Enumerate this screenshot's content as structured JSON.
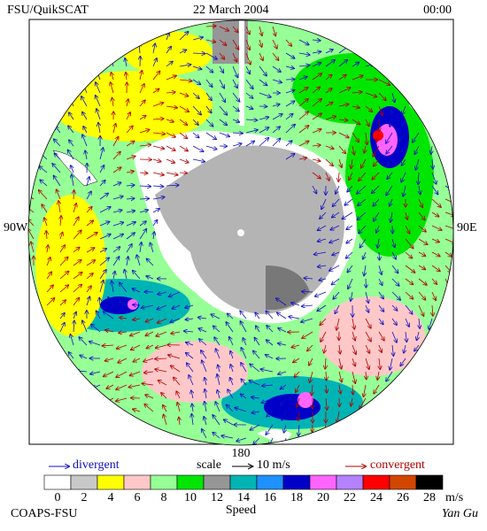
{
  "header": {
    "left": "FSU/QuikSCAT",
    "center": "22 March 2004",
    "right": "00:00"
  },
  "map": {
    "labels": {
      "left": "90W",
      "right": "90E",
      "bottom": "180"
    }
  },
  "legend": {
    "divergent": "divergent",
    "scale": "scale",
    "scale_value": "10 m/s",
    "convergent": "convergent",
    "title": "Speed",
    "unit": "m/s",
    "ticks": [
      "0",
      "2",
      "4",
      "6",
      "8",
      "10",
      "12",
      "14",
      "16",
      "18",
      "20",
      "22",
      "24",
      "26",
      "28"
    ],
    "colors": [
      "#ffffff",
      "#c8c8c8",
      "#ffff00",
      "#ffc8c8",
      "#96ff96",
      "#00e600",
      "#969696",
      "#00b4b4",
      "#1e90ff",
      "#0000c8",
      "#ff64ff",
      "#b482ff",
      "#ff0000",
      "#d24600",
      "#000000"
    ]
  },
  "footer": {
    "left": "COAPS-FSU",
    "right": "Yan Gu"
  }
}
